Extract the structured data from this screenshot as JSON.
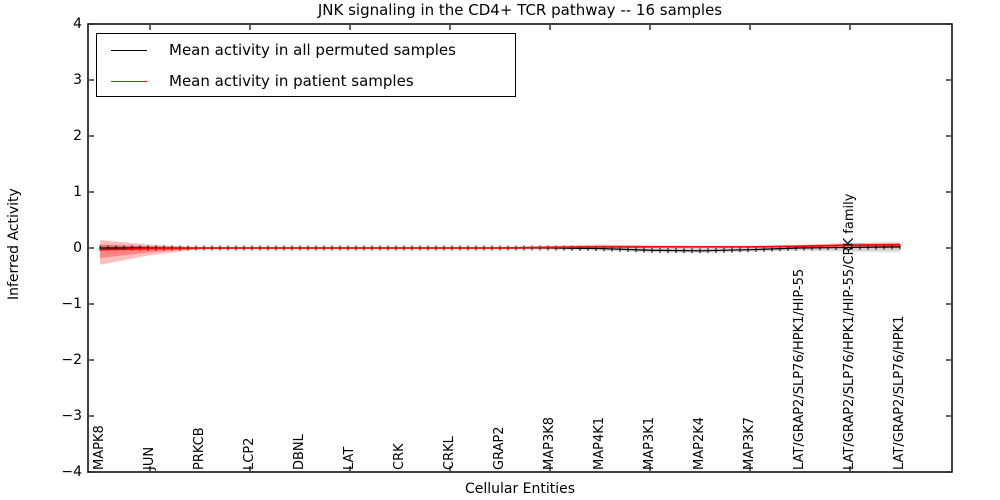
{
  "chart_data": {
    "type": "line",
    "title": "JNK signaling in the CD4+ TCR pathway -- 16 samples",
    "xlabel": "Cellular Entities",
    "ylabel": "Inferred Activity",
    "ylim": [
      -4,
      4
    ],
    "yticks": [
      -4,
      -3,
      -2,
      -1,
      0,
      1,
      2,
      3,
      4
    ],
    "ytick_labels": [
      "−4",
      "−3",
      "−2",
      "−1",
      "0",
      "1",
      "2",
      "3",
      "4"
    ],
    "grid": false,
    "legend_position": "upper left",
    "xtick_marks_at_category_indices": [
      1,
      3,
      5,
      7,
      9,
      11,
      13,
      15
    ],
    "categories": [
      "MAPK8",
      "JUN",
      "PRKCB",
      "LCP2",
      "DBNL",
      "LAT",
      "CRK",
      "CRKL",
      "GRAP2",
      "MAP3K8",
      "MAP4K1",
      "MAP3K1",
      "MAP2K4",
      "MAP3K7",
      "LAT/GRAP2/SLP76/HPK1/HIP-55",
      "LAT/GRAP2/SLP76/HPK1/HIP-55/CRK family",
      "LAT/GRAP2/SLP76/HPK1"
    ],
    "series": [
      {
        "name": "Mean activity in all permuted samples",
        "color": "#000000",
        "marker": "+",
        "values": [
          0.0,
          0.0,
          0.0,
          0.0,
          0.0,
          0.0,
          0.0,
          0.0,
          0.0,
          0.0,
          -0.01,
          -0.04,
          -0.05,
          -0.03,
          0.0,
          0.01,
          0.02
        ],
        "band_upper": [
          0.05,
          0.04,
          0.03,
          0.03,
          0.03,
          0.03,
          0.03,
          0.03,
          0.03,
          0.03,
          0.03,
          0.03,
          0.03,
          0.03,
          0.05,
          0.06,
          0.06
        ],
        "band_lower": [
          -0.05,
          -0.04,
          -0.03,
          -0.03,
          -0.03,
          -0.03,
          -0.03,
          -0.03,
          -0.03,
          -0.03,
          -0.05,
          -0.08,
          -0.09,
          -0.07,
          -0.05,
          -0.07,
          -0.08
        ],
        "band_color": "#aaaaaa"
      },
      {
        "name": "Mean activity in patient samples",
        "color": "#ff0000",
        "marker": "none",
        "values": [
          -0.03,
          -0.01,
          0.0,
          0.0,
          0.0,
          0.0,
          0.0,
          0.0,
          0.0,
          0.01,
          0.02,
          0.02,
          0.02,
          0.02,
          0.03,
          0.05,
          0.06
        ],
        "band_upper": [
          0.14,
          0.06,
          0.01,
          0.01,
          0.01,
          0.01,
          0.01,
          0.01,
          0.01,
          0.04,
          0.06,
          0.05,
          0.04,
          0.04,
          0.06,
          0.09,
          0.1
        ],
        "band_lower": [
          -0.3,
          -0.13,
          -0.02,
          -0.01,
          -0.01,
          -0.01,
          -0.01,
          -0.01,
          -0.01,
          -0.01,
          -0.01,
          0.0,
          0.0,
          0.0,
          0.01,
          0.01,
          0.0
        ],
        "band_color": "#ff0000"
      }
    ]
  }
}
